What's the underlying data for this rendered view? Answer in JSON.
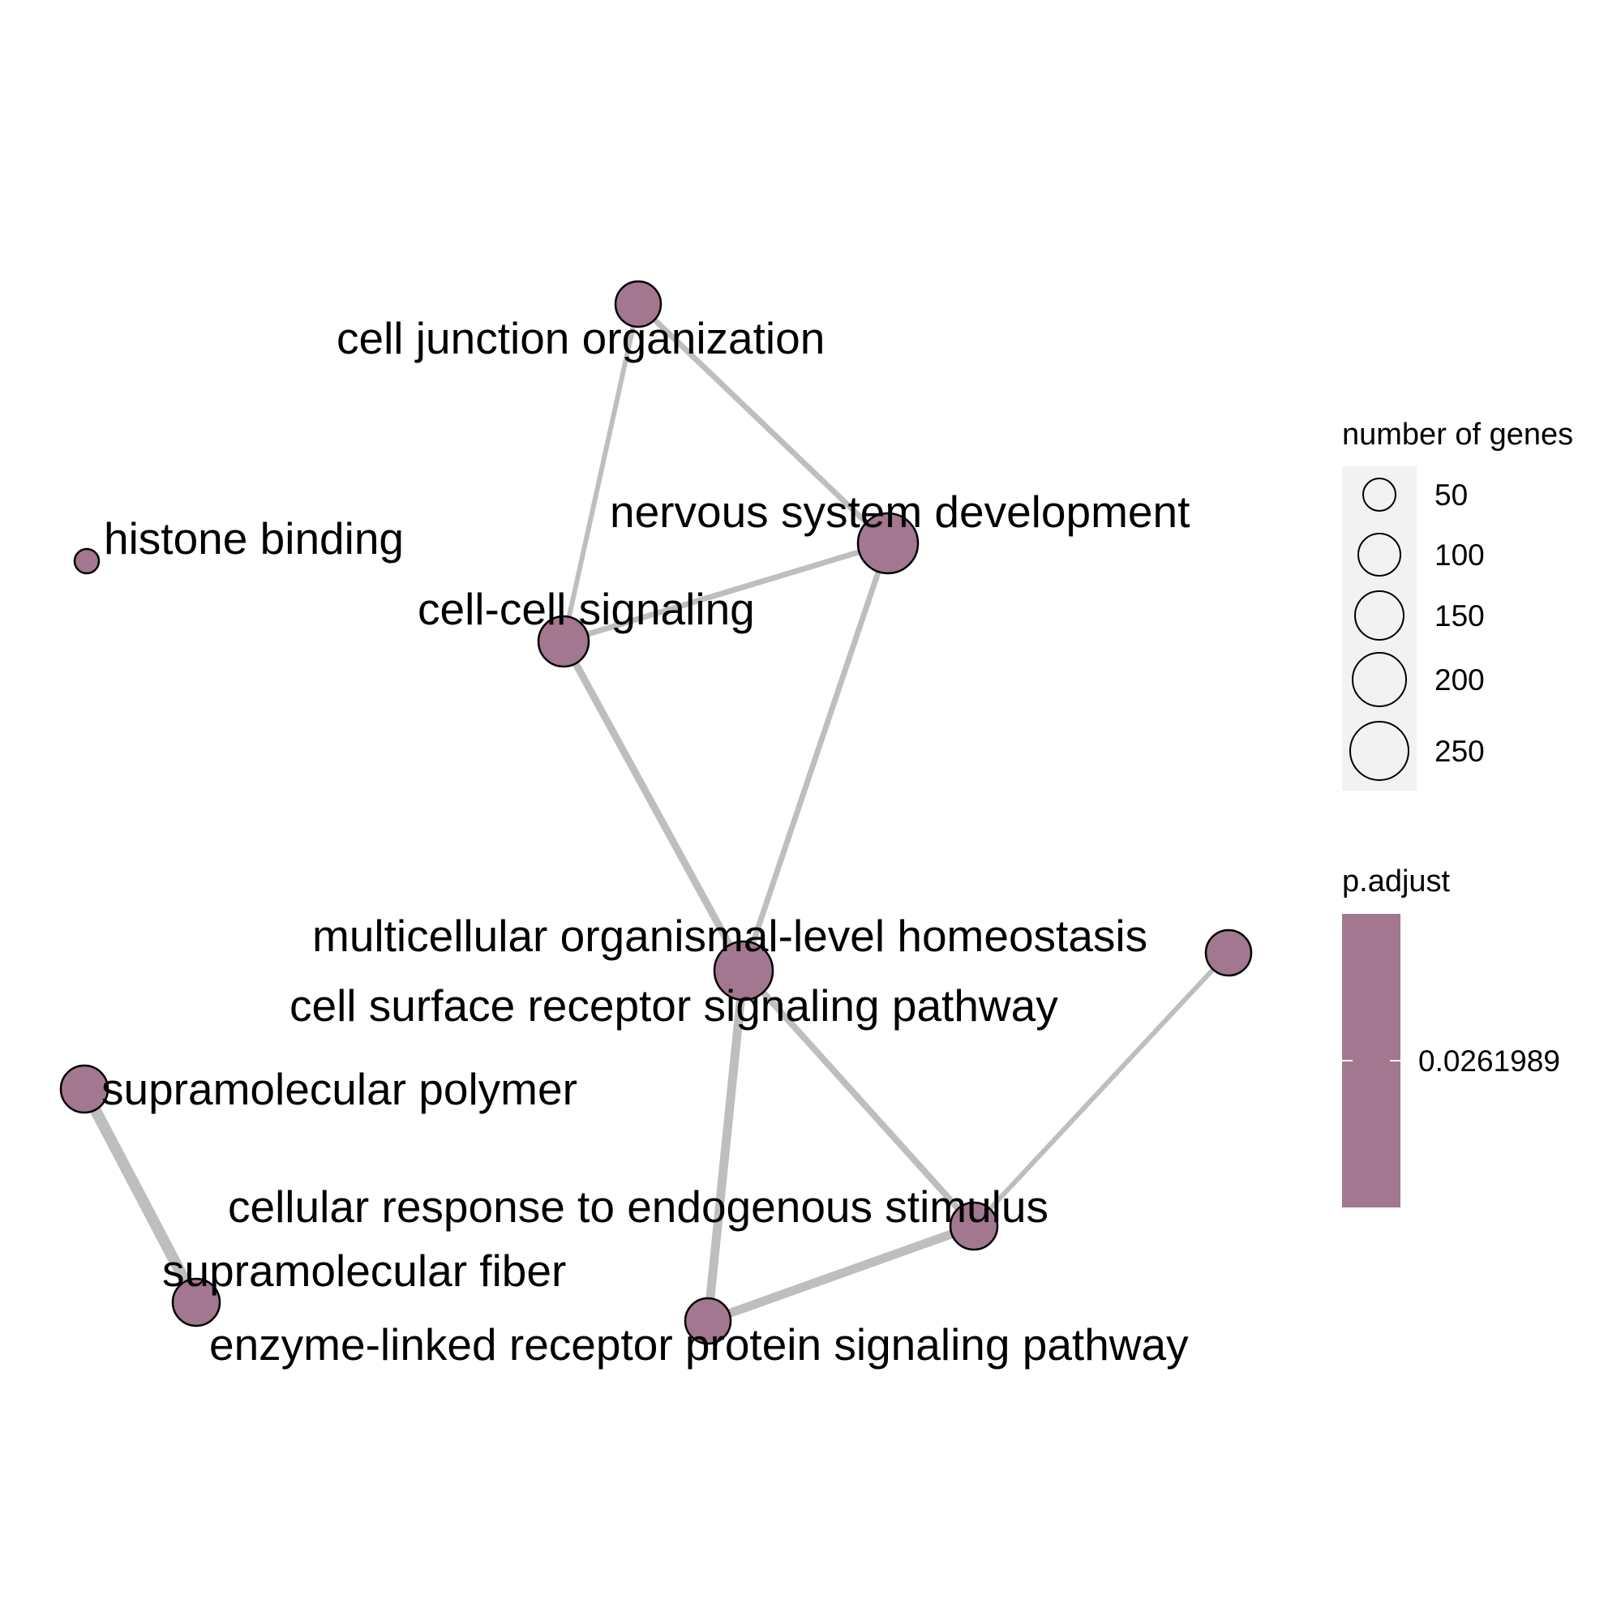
{
  "chart_data": {
    "type": "network",
    "edge_color": "#bebebe",
    "node_fill": "#a2778f",
    "node_stroke": "#000000",
    "nodes": [
      {
        "id": "cell_junction",
        "label": "cell junction organization"
      },
      {
        "id": "nervous",
        "label": "nervous system development"
      },
      {
        "id": "histone",
        "label": "histone binding"
      },
      {
        "id": "cellcell",
        "label": "cell-cell signaling"
      },
      {
        "id": "multicell",
        "label": "multicellular organismal-level homeostasis"
      },
      {
        "id": "surface",
        "label": "cell surface receptor signaling pathway"
      },
      {
        "id": "polymer",
        "label": "supramolecular polymer"
      },
      {
        "id": "response",
        "label": "cellular response to endogenous stimulus"
      },
      {
        "id": "fiber",
        "label": "supramolecular fiber"
      },
      {
        "id": "enzyme",
        "label": "enzyme-linked receptor protein signaling pathway"
      }
    ],
    "edges": [
      {
        "source": "cell_junction",
        "target": "cellcell"
      },
      {
        "source": "cell_junction",
        "target": "nervous"
      },
      {
        "source": "cellcell",
        "target": "nervous"
      },
      {
        "source": "cellcell",
        "target": "surface"
      },
      {
        "source": "nervous",
        "target": "surface"
      },
      {
        "source": "surface",
        "target": "enzyme"
      },
      {
        "source": "surface",
        "target": "response"
      },
      {
        "source": "multicell",
        "target": "response"
      },
      {
        "source": "response",
        "target": "enzyme"
      },
      {
        "source": "polymer",
        "target": "fiber"
      }
    ],
    "legend_size": {
      "title": "number of genes",
      "values": [
        "50",
        "100",
        "150",
        "200",
        "250"
      ]
    },
    "legend_color": {
      "title": "p.adjust",
      "value": "0.0261989",
      "color": "#a2778f"
    }
  }
}
